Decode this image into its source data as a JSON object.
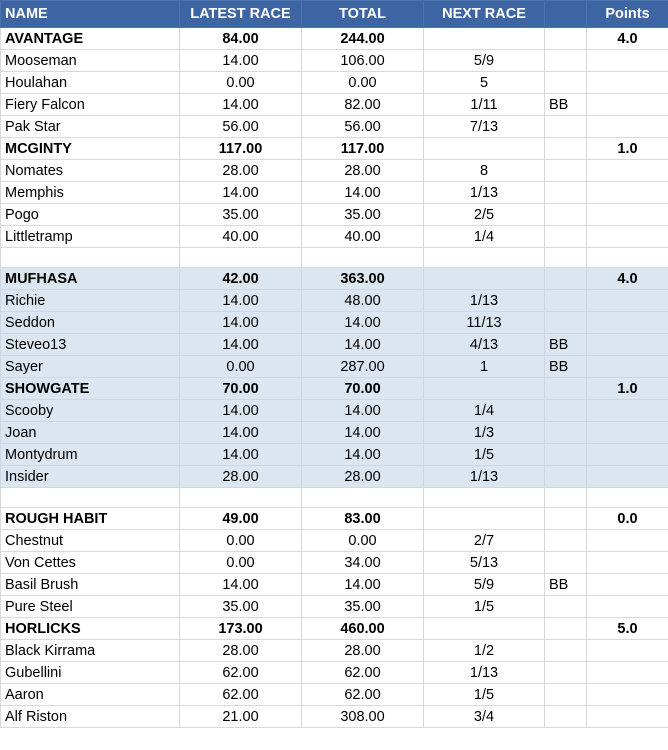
{
  "headers": {
    "name": "NAME",
    "latest": "LATEST RACE",
    "total": "TOTAL",
    "next": "NEXT RACE",
    "bb": "",
    "points": "Points"
  },
  "rows": [
    {
      "type": "team",
      "group": 1,
      "name": "AVANTAGE",
      "latest": "84.00",
      "total": "244.00",
      "next": "",
      "bb": "",
      "points": "4.0"
    },
    {
      "type": "horse",
      "group": 1,
      "name": "Mooseman",
      "latest": "14.00",
      "total": "106.00",
      "next": "5/9",
      "bb": "",
      "points": ""
    },
    {
      "type": "horse",
      "group": 1,
      "name": "Houlahan",
      "latest": "0.00",
      "total": "0.00",
      "next": "5",
      "bb": "",
      "points": ""
    },
    {
      "type": "horse",
      "group": 1,
      "name": "Fiery Falcon",
      "latest": "14.00",
      "total": "82.00",
      "next": "1/11",
      "bb": "BB",
      "points": ""
    },
    {
      "type": "horse",
      "group": 1,
      "name": "Pak Star",
      "latest": "56.00",
      "total": "56.00",
      "next": "7/13",
      "bb": "",
      "points": ""
    },
    {
      "type": "team",
      "group": 1,
      "name": "MCGINTY",
      "latest": "117.00",
      "total": "117.00",
      "next": "",
      "bb": "",
      "points": "1.0"
    },
    {
      "type": "horse",
      "group": 1,
      "name": "Nomates",
      "latest": "28.00",
      "total": "28.00",
      "next": "8",
      "bb": "",
      "points": ""
    },
    {
      "type": "horse",
      "group": 1,
      "name": "Memphis",
      "latest": "14.00",
      "total": "14.00",
      "next": "1/13",
      "bb": "",
      "points": ""
    },
    {
      "type": "horse",
      "group": 1,
      "name": "Pogo",
      "latest": "35.00",
      "total": "35.00",
      "next": "2/5",
      "bb": "",
      "points": ""
    },
    {
      "type": "horse",
      "group": 1,
      "name": "Littletramp",
      "latest": "40.00",
      "total": "40.00",
      "next": "1/4",
      "bb": "",
      "points": ""
    },
    {
      "type": "blank",
      "group": 1,
      "name": "",
      "latest": "",
      "total": "",
      "next": "",
      "bb": "",
      "points": ""
    },
    {
      "type": "team",
      "group": 2,
      "name": "MUFHASA",
      "latest": "42.00",
      "total": "363.00",
      "next": "",
      "bb": "",
      "points": "4.0"
    },
    {
      "type": "horse",
      "group": 2,
      "name": "Richie",
      "latest": "14.00",
      "total": "48.00",
      "next": "1/13",
      "bb": "",
      "points": ""
    },
    {
      "type": "horse",
      "group": 2,
      "name": "Seddon",
      "latest": "14.00",
      "total": "14.00",
      "next": "11/13",
      "bb": "",
      "points": ""
    },
    {
      "type": "horse",
      "group": 2,
      "name": "Steveo13",
      "latest": "14.00",
      "total": "14.00",
      "next": "4/13",
      "bb": "BB",
      "points": ""
    },
    {
      "type": "horse",
      "group": 2,
      "name": "Sayer",
      "latest": "0.00",
      "total": "287.00",
      "next": "1",
      "bb": "BB",
      "points": ""
    },
    {
      "type": "team",
      "group": 2,
      "name": "SHOWGATE",
      "latest": "70.00",
      "total": "70.00",
      "next": "",
      "bb": "",
      "points": "1.0"
    },
    {
      "type": "horse",
      "group": 2,
      "name": "Scooby",
      "latest": "14.00",
      "total": "14.00",
      "next": "1/4",
      "bb": "",
      "points": ""
    },
    {
      "type": "horse",
      "group": 2,
      "name": "Joan",
      "latest": "14.00",
      "total": "14.00",
      "next": "1/3",
      "bb": "",
      "points": ""
    },
    {
      "type": "horse",
      "group": 2,
      "name": "Montydrum",
      "latest": "14.00",
      "total": "14.00",
      "next": "1/5",
      "bb": "",
      "points": ""
    },
    {
      "type": "horse",
      "group": 2,
      "name": "Insider",
      "latest": "28.00",
      "total": "28.00",
      "next": "1/13",
      "bb": "",
      "points": ""
    },
    {
      "type": "blank",
      "group": 3,
      "name": "",
      "latest": "",
      "total": "",
      "next": "",
      "bb": "",
      "points": ""
    },
    {
      "type": "team",
      "group": 3,
      "name": "ROUGH HABIT",
      "latest": "49.00",
      "total": "83.00",
      "next": "",
      "bb": "",
      "points": "0.0"
    },
    {
      "type": "horse",
      "group": 3,
      "name": "Chestnut",
      "latest": "0.00",
      "total": "0.00",
      "next": "2/7",
      "bb": "",
      "points": ""
    },
    {
      "type": "horse",
      "group": 3,
      "name": "Von Cettes",
      "latest": "0.00",
      "total": "34.00",
      "next": "5/13",
      "bb": "",
      "points": ""
    },
    {
      "type": "horse",
      "group": 3,
      "name": "Basil Brush",
      "latest": "14.00",
      "total": "14.00",
      "next": "5/9",
      "bb": "BB",
      "points": ""
    },
    {
      "type": "horse",
      "group": 3,
      "name": "Pure Steel",
      "latest": "35.00",
      "total": "35.00",
      "next": "1/5",
      "bb": "",
      "points": ""
    },
    {
      "type": "team",
      "group": 3,
      "name": "HORLICKS",
      "latest": "173.00",
      "total": "460.00",
      "next": "",
      "bb": "",
      "points": "5.0"
    },
    {
      "type": "horse",
      "group": 3,
      "name": "Black Kirrama",
      "latest": "28.00",
      "total": "28.00",
      "next": "1/2",
      "bb": "",
      "points": ""
    },
    {
      "type": "horse",
      "group": 3,
      "name": "Gubellini",
      "latest": "62.00",
      "total": "62.00",
      "next": "1/13",
      "bb": "",
      "points": ""
    },
    {
      "type": "horse",
      "group": 3,
      "name": "Aaron",
      "latest": "62.00",
      "total": "62.00",
      "next": "1/5",
      "bb": "",
      "points": ""
    },
    {
      "type": "horse",
      "group": 3,
      "name": "Alf Riston",
      "latest": "21.00",
      "total": "308.00",
      "next": "3/4",
      "bb": "",
      "points": ""
    }
  ],
  "colors": {
    "header_bg": "#3d65a4",
    "header_text": "#ffffff",
    "shaded_group_bg": "#dce6f1",
    "grid": "#d9d9d9"
  }
}
